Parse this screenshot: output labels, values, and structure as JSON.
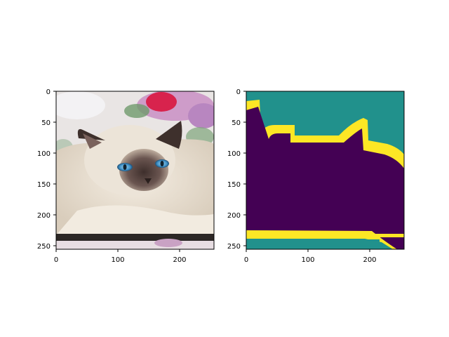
{
  "panels": [
    {
      "id": "photo",
      "content": "cat-photo",
      "x_ticks": [
        "0",
        "100",
        "200"
      ],
      "y_ticks": [
        "0",
        "50",
        "100",
        "150",
        "200",
        "250"
      ]
    },
    {
      "id": "mask",
      "content": "segmentation-mask",
      "x_ticks": [
        "0",
        "100",
        "200"
      ],
      "y_ticks": [
        "0",
        "50",
        "100",
        "150",
        "200",
        "250"
      ]
    }
  ],
  "colors": {
    "background": "#21918c",
    "foreground": "#440154",
    "boundary": "#fde725"
  }
}
